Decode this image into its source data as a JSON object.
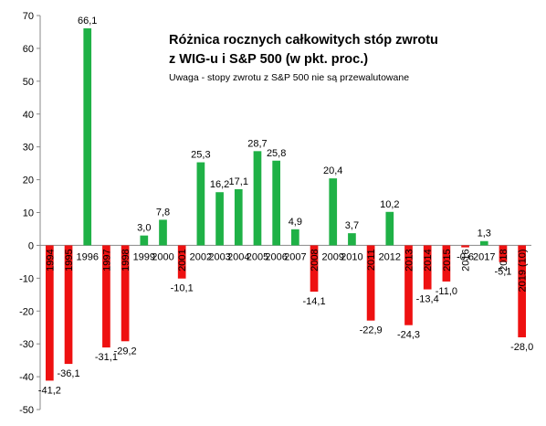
{
  "chart_data": {
    "type": "bar",
    "title_line1": "Różnica rocznych całkowitych stóp zwrotu",
    "title_line2": "z WIG-u i S&P 500 (w pkt. proc.)",
    "subtitle": "Uwaga - stopy zwrotu z S&P 500 nie są przewalutowane",
    "categories": [
      "1994",
      "1995",
      "1996",
      "1997",
      "1998",
      "1999",
      "2000",
      "2001",
      "2002",
      "2003",
      "2004",
      "2005",
      "2006",
      "2007",
      "2008",
      "2009",
      "2010",
      "2011",
      "2012",
      "2013",
      "2014",
      "2015",
      "2016",
      "2017",
      "2018",
      "2019 (10)"
    ],
    "values": [
      -41.2,
      -36.1,
      66.1,
      -31.1,
      -29.2,
      3.0,
      7.8,
      -10.1,
      25.3,
      16.2,
      17.1,
      28.7,
      25.8,
      4.9,
      -14.1,
      20.4,
      3.7,
      -22.9,
      10.2,
      -24.3,
      -13.4,
      -11.0,
      -0.6,
      1.3,
      -5.1,
      -28.0
    ],
    "labels": [
      "-41,2",
      "-36,1",
      "66,1",
      "-31,1",
      "-29,2",
      "3,0",
      "7,8",
      "-10,1",
      "25,3",
      "16,2",
      "17,1",
      "28,7",
      "25,8",
      "4,9",
      "-14,1",
      "20,4",
      "3,7",
      "-22,9",
      "10,2",
      "-24,3",
      "-13,4",
      "-11,0",
      "-0,6",
      "1,3",
      "-5,1",
      "-28,0"
    ],
    "y_ticks": [
      "-50",
      "-40",
      "-30",
      "-20",
      "-10",
      "0",
      "10",
      "20",
      "30",
      "40",
      "50",
      "60",
      "70"
    ],
    "ylim": [
      -50,
      70
    ],
    "grid": false,
    "colors": {
      "positive": "#1fb146",
      "negative": "#ee1111"
    }
  }
}
